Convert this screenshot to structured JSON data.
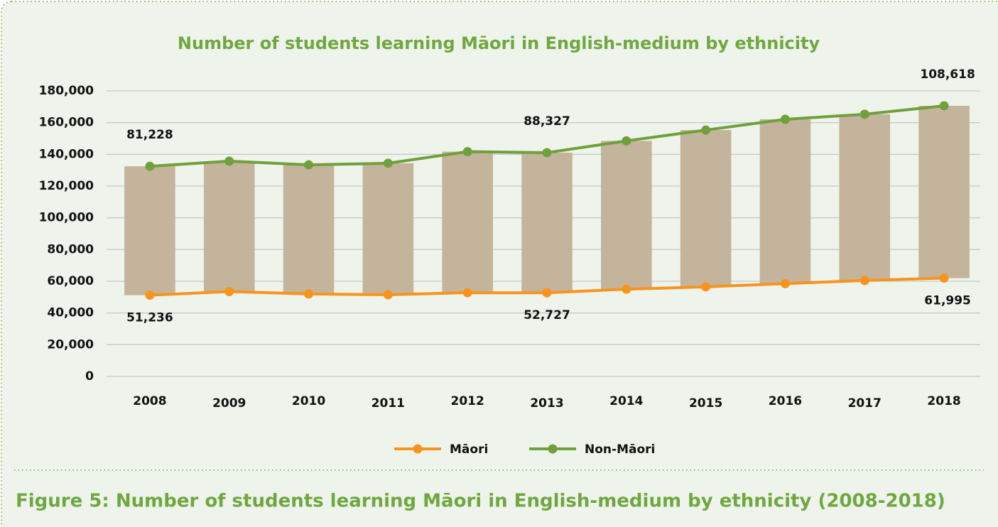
{
  "chart_data": {
    "type": "stacked-line",
    "title": "Number of students learning Māori in English-medium by ethnicity",
    "categories": [
      "2008",
      "2009",
      "2010",
      "2011",
      "2012",
      "2013",
      "2014",
      "2015",
      "2016",
      "2017",
      "2018"
    ],
    "series": [
      {
        "name": "Māori",
        "color": "#f7941d",
        "values": [
          51236,
          53500,
          52000,
          51500,
          52800,
          52727,
          55000,
          56500,
          58500,
          60500,
          61995
        ],
        "value_labels": [
          "51,236",
          null,
          null,
          null,
          null,
          "52,727",
          null,
          null,
          null,
          null,
          "61,995"
        ]
      },
      {
        "name": "Non-Māori",
        "color": "#70a03c",
        "values": [
          81228,
          82200,
          81400,
          82900,
          88900,
          88327,
          93500,
          98800,
          103600,
          104800,
          108618
        ],
        "value_labels": [
          "81,228",
          null,
          null,
          null,
          null,
          "88,327",
          null,
          null,
          null,
          null,
          "108,618"
        ]
      }
    ],
    "bar_color": "#c4b49b",
    "ylim": [
      0,
      180000
    ],
    "yticks": [
      0,
      {
        "value": 20000,
        "label": "20,000"
      },
      {
        "value": 40000,
        "label": "40,000"
      },
      {
        "value": 60000,
        "label": "60,000"
      },
      {
        "value": 80000,
        "label": "80,000"
      },
      {
        "value": 100000,
        "label": "100,000"
      },
      {
        "value": 120000,
        "label": "120,000"
      },
      {
        "value": 140000,
        "label": "140,000"
      },
      {
        "value": 160000,
        "label": "160,000"
      },
      {
        "value": 180000,
        "label": "180,000"
      }
    ],
    "grid": true,
    "legend": "bottom"
  },
  "caption": "Figure 5: Number of students learning Māori in English-medium by ethnicity (2008-2018)"
}
